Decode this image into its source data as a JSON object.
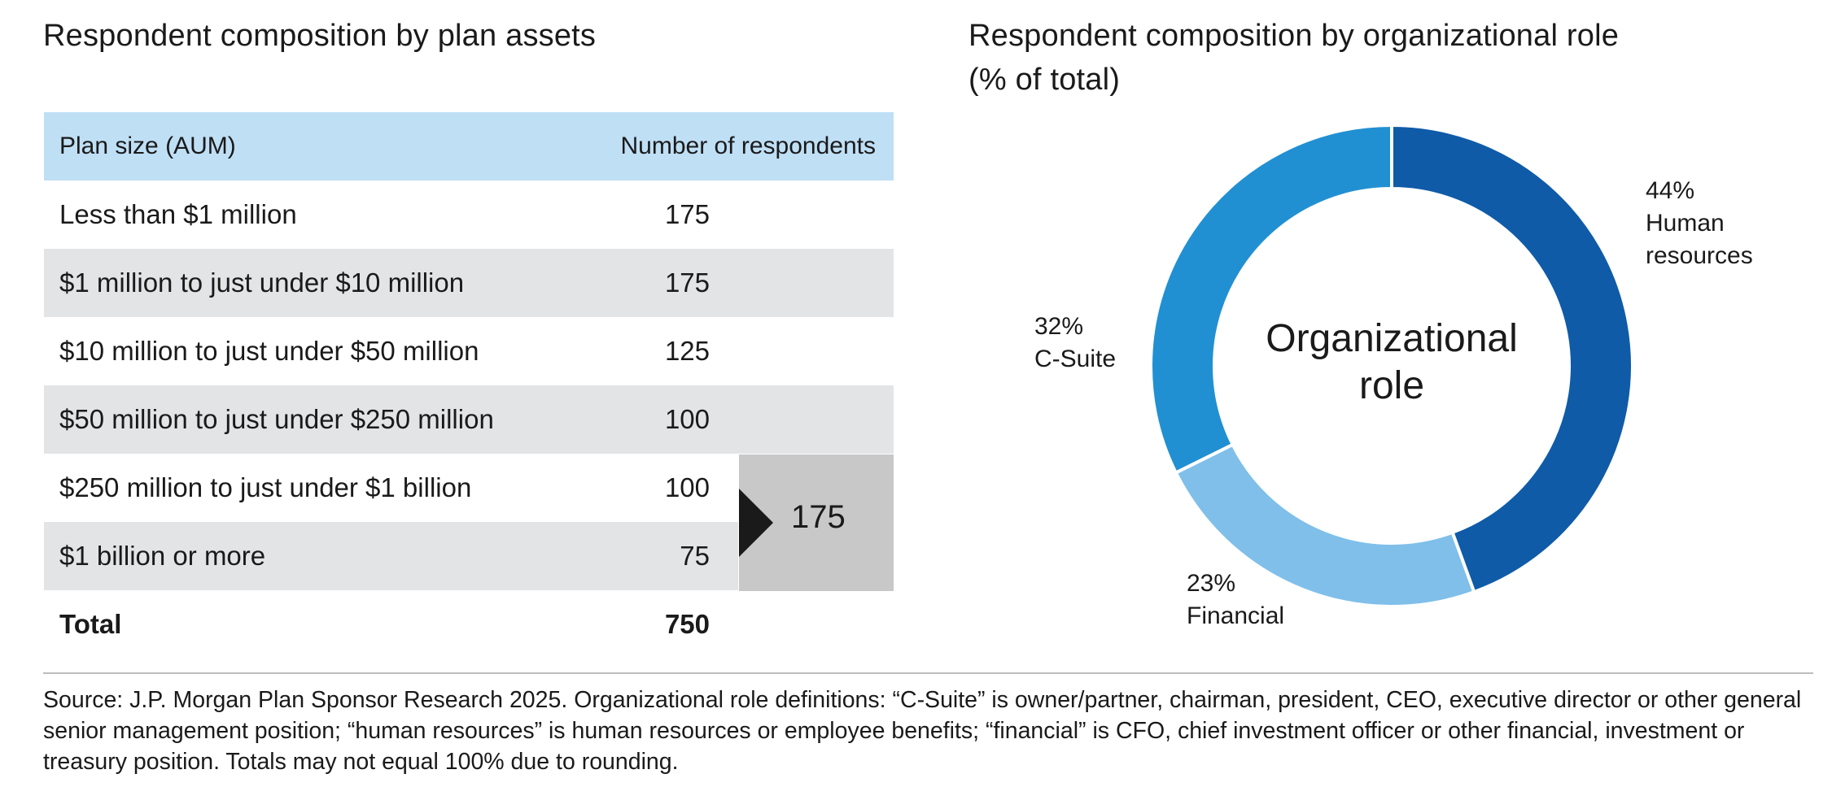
{
  "left": {
    "title": "Respondent composition by plan assets",
    "table": {
      "header": [
        "Plan size (AUM)",
        "Number of respondents"
      ],
      "rows": [
        {
          "label": "Less than $1 million",
          "value": "175"
        },
        {
          "label": "$1 million to just under $10 million",
          "value": "175"
        },
        {
          "label": "$10 million to just under $50 million",
          "value": "125"
        },
        {
          "label": "$50 million to just under $250 million",
          "value": "100"
        },
        {
          "label": "$250 million to just under $1 billion",
          "value": "100"
        },
        {
          "label": "$1 billion or more",
          "value": "75"
        }
      ],
      "total": {
        "label": "Total",
        "value": "750"
      },
      "group_total": "175"
    }
  },
  "right": {
    "title_line1": "Respondent composition by organizational role",
    "title_line2": "(% of total)",
    "center_line1": "Organizational",
    "center_line2": "role"
  },
  "chart_data": [
    {
      "type": "table",
      "title": "Respondent composition by plan assets",
      "columns": [
        "Plan size (AUM)",
        "Number of respondents"
      ],
      "rows": [
        [
          "Less than $1 million",
          175
        ],
        [
          "$1 million to just under $10 million",
          175
        ],
        [
          "$10 million to just under $50 million",
          125
        ],
        [
          "$50 million to just under $250 million",
          100
        ],
        [
          "$250 million to just under $1 billion",
          100
        ],
        [
          "$1 billion or more",
          75
        ]
      ],
      "total": [
        "Total",
        750
      ],
      "bracket_sum": {
        "rows": [
          "$250 million to just under $1 billion",
          "$1 billion or more"
        ],
        "value": 175
      }
    },
    {
      "type": "pie",
      "title": "Respondent composition by organizational role (% of total)",
      "center_label": "Organizational role",
      "slices": [
        {
          "name": "Human resources",
          "value": 44,
          "label": "44%",
          "color": "#0f5ba8"
        },
        {
          "name": "Financial",
          "value": 23,
          "label": "23%",
          "color": "#7fbfea"
        },
        {
          "name": "C-Suite",
          "value": 32,
          "label": "32%",
          "color": "#2190d2"
        }
      ]
    }
  ],
  "labels": {
    "hr_pct": "44%",
    "hr_name": "Human\nresources",
    "fin_pct": "23%",
    "fin_name": "Financial",
    "cs_pct": "32%",
    "cs_name": "C-Suite"
  },
  "source": "Source: J.P. Morgan Plan Sponsor Research 2025. Organizational role definitions: “C-Suite” is owner/partner, chairman, president, CEO, executive director or other general senior management position; “human resources” is human resources or employee benefits; “financial” is CFO, chief investment officer or other financial, investment or treasury position. Totals may not equal 100% due to rounding."
}
